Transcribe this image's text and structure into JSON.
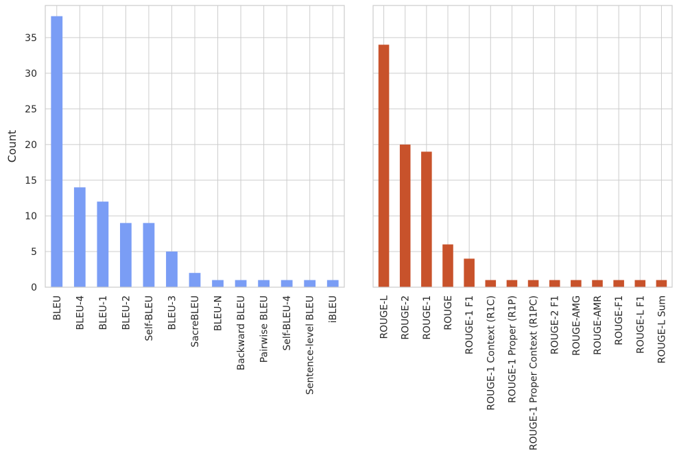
{
  "chart_data": [
    {
      "type": "bar",
      "ylabel": "Count",
      "xlabel": "",
      "ylim": [
        0,
        39.5
      ],
      "yticks": [
        0,
        5,
        10,
        15,
        20,
        25,
        30,
        35
      ],
      "grid": true,
      "color": "#7a9df5",
      "categories": [
        "BLEU",
        "BLEU-4",
        "BLEU-1",
        "BLEU-2",
        "Self-BLEU",
        "BLEU-3",
        "SacreBLEU",
        "BLEU-N",
        "Backward BLEU",
        "Pairwise BLEU",
        "Self-BLEU-4",
        "Sentence-level BLEU",
        "iBLEU"
      ],
      "values": [
        38,
        14,
        12,
        9,
        9,
        5,
        2,
        1,
        1,
        1,
        1,
        1,
        1
      ]
    },
    {
      "type": "bar",
      "ylabel": "",
      "xlabel": "",
      "ylim": [
        0,
        39.5
      ],
      "yticks": [
        0,
        5,
        10,
        15,
        20,
        25,
        30,
        35
      ],
      "grid": true,
      "color": "#c8522b",
      "categories": [
        "ROUGE-L",
        "ROUGE-2",
        "ROUGE-1",
        "ROUGE",
        "ROUGE-1 F1",
        "ROUGE-1 Context (R1C)",
        "ROUGE-1 Proper (R1P)",
        "ROUGE-1 Proper Context (R1PC)",
        "ROUGE-2 F1",
        "ROUGE-AMG",
        "ROUGE-AMR",
        "ROUGE-F1",
        "ROUGE-L F1",
        "ROUGE-L Sum"
      ],
      "values": [
        34,
        20,
        19,
        6,
        4,
        1,
        1,
        1,
        1,
        1,
        1,
        1,
        1,
        1
      ]
    }
  ]
}
